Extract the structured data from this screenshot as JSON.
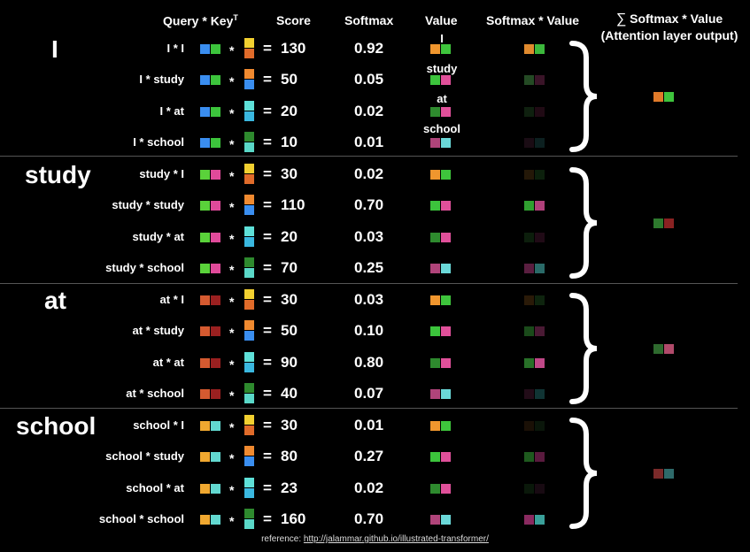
{
  "headers": {
    "query_key": "Query * Key",
    "query_key_sup": "T",
    "score": "Score",
    "softmax": "Softmax",
    "value": "Value",
    "softmax_value": "Softmax * Value",
    "sum_symbol": "∑",
    "sum_label": "Softmax * Value",
    "sum_sub": "(Attention layer output)"
  },
  "equals": "=",
  "times": "*",
  "colors": {
    "I_q": [
      "#3a8ef0",
      "#3cc43c"
    ],
    "study_q": [
      "#5ad23a",
      "#e04a9a"
    ],
    "at_q": [
      "#d55a30",
      "#9a2020"
    ],
    "school_q": [
      "#f0a830",
      "#62d8d0"
    ],
    "I_k": [
      "#f2d030",
      "#e06b2a"
    ],
    "study_k": [
      "#f08a30",
      "#3a8ef0"
    ],
    "at_k": [
      "#5ee0d8",
      "#3ab8e0"
    ],
    "school_k": [
      "#2e8a2e",
      "#5ad8c8"
    ],
    "I_v": [
      "#f0962e",
      "#3ec43c"
    ],
    "study_v": [
      "#3cc43c",
      "#e0509a"
    ],
    "at_v": [
      "#2e8a2e",
      "#e0509a"
    ],
    "school_v": [
      "#b0447a",
      "#6ad8d8"
    ],
    "I_out": [
      "#e07a2a",
      "#3ec43c"
    ],
    "study_out": [
      "#2e7a2e",
      "#8a2222"
    ],
    "at_out": [
      "#2e6a2e",
      "#b04a6a"
    ],
    "school_out": [
      "#7a2a2a",
      "#2e6a6a"
    ]
  },
  "value_words": [
    "I",
    "study",
    "at",
    "school"
  ],
  "groups": [
    {
      "word": "I",
      "rows": [
        {
          "label": "I * I",
          "score": "130",
          "softmax": "0.92",
          "sv": [
            "#e08a2e",
            "#3cb83c"
          ]
        },
        {
          "label": "I * study",
          "score": "50",
          "softmax": "0.05",
          "sv": [
            "#244a24",
            "#3a1428"
          ]
        },
        {
          "label": "I * at",
          "score": "20",
          "softmax": "0.02",
          "sv": [
            "#0f200f",
            "#200a14"
          ]
        },
        {
          "label": "I * school",
          "score": "10",
          "softmax": "0.01",
          "sv": [
            "#1a0c14",
            "#0c2020"
          ]
        }
      ]
    },
    {
      "word": "study",
      "rows": [
        {
          "label": "study * I",
          "score": "30",
          "softmax": "0.02",
          "sv": [
            "#241808",
            "#0c200c"
          ]
        },
        {
          "label": "study * study",
          "score": "110",
          "softmax": "0.70",
          "sv": [
            "#30a030",
            "#b0407a"
          ]
        },
        {
          "label": "study * at",
          "score": "20",
          "softmax": "0.03",
          "sv": [
            "#0c1e0c",
            "#200a16"
          ]
        },
        {
          "label": "study * school",
          "score": "70",
          "softmax": "0.25",
          "sv": [
            "#5a1e40",
            "#2a6a68"
          ]
        }
      ]
    },
    {
      "word": "at",
      "rows": [
        {
          "label": "at * I",
          "score": "30",
          "softmax": "0.03",
          "sv": [
            "#2a1a08",
            "#0e240e"
          ]
        },
        {
          "label": "at * study",
          "score": "50",
          "softmax": "0.10",
          "sv": [
            "#1a4a1a",
            "#4a1a34"
          ]
        },
        {
          "label": "at * at",
          "score": "90",
          "softmax": "0.80",
          "sv": [
            "#287028",
            "#c04888"
          ]
        },
        {
          "label": "at * school",
          "score": "40",
          "softmax": "0.07",
          "sv": [
            "#220c18",
            "#103434"
          ]
        }
      ]
    },
    {
      "word": "school",
      "rows": [
        {
          "label": "school * I",
          "score": "30",
          "softmax": "0.01",
          "sv": [
            "#1a1006",
            "#0a160a"
          ]
        },
        {
          "label": "school * study",
          "score": "80",
          "softmax": "0.27",
          "sv": [
            "#1e5a1e",
            "#5a1a3e"
          ]
        },
        {
          "label": "school * at",
          "score": "23",
          "softmax": "0.02",
          "sv": [
            "#0a180a",
            "#180a12"
          ]
        },
        {
          "label": "school * school",
          "score": "160",
          "softmax": "0.70",
          "sv": [
            "#8a2a60",
            "#3aa09a"
          ]
        }
      ]
    }
  ],
  "reference": {
    "prefix": "reference: ",
    "link": "http://jalammar.github.io/illustrated-transformer/"
  }
}
